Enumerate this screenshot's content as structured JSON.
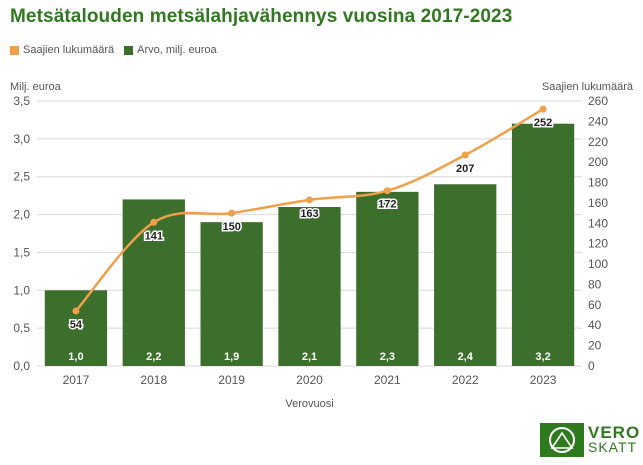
{
  "title": "Metsätalouden metsälahjavähennys vuosina 2017-2023",
  "colors": {
    "bar": "#3c6e2c",
    "line": "#f0a04b",
    "title": "#2f7a1f"
  },
  "logo": {
    "top": "VERO",
    "bottom": "SKATT"
  },
  "chart_data": {
    "type": "bar+line",
    "title": "Metsätalouden metsälahjavähennys vuosina 2017-2023",
    "categories": [
      "2017",
      "2018",
      "2019",
      "2020",
      "2021",
      "2022",
      "2023"
    ],
    "xlabel": "Verovuosi",
    "ylabel_left": "Milj. euroa",
    "ylabel_right": "Saajien lukumäärä",
    "ylim_left": [
      0,
      3.5
    ],
    "ylim_right": [
      0,
      260
    ],
    "yticks_left": [
      "0,0",
      "0,5",
      "1,0",
      "1,5",
      "2,0",
      "2,5",
      "3,0",
      "3,5"
    ],
    "yticks_right": [
      "0",
      "20",
      "40",
      "60",
      "80",
      "100",
      "120",
      "140",
      "160",
      "180",
      "200",
      "220",
      "240",
      "260"
    ],
    "grid": true,
    "legend_position": "top-left",
    "series": [
      {
        "name": "Saajien lukumäärä",
        "type": "line",
        "axis": "right",
        "values": [
          54,
          141,
          150,
          163,
          172,
          207,
          252
        ],
        "labels": [
          "54",
          "141",
          "150",
          "163",
          "172",
          "207",
          "252"
        ]
      },
      {
        "name": "Arvo, milj. euroa",
        "type": "bar",
        "axis": "left",
        "values": [
          1.0,
          2.2,
          1.9,
          2.1,
          2.3,
          2.4,
          3.2
        ],
        "labels": [
          "1,0",
          "2,2",
          "1,9",
          "2,1",
          "2,3",
          "2,4",
          "3,2"
        ]
      }
    ]
  }
}
